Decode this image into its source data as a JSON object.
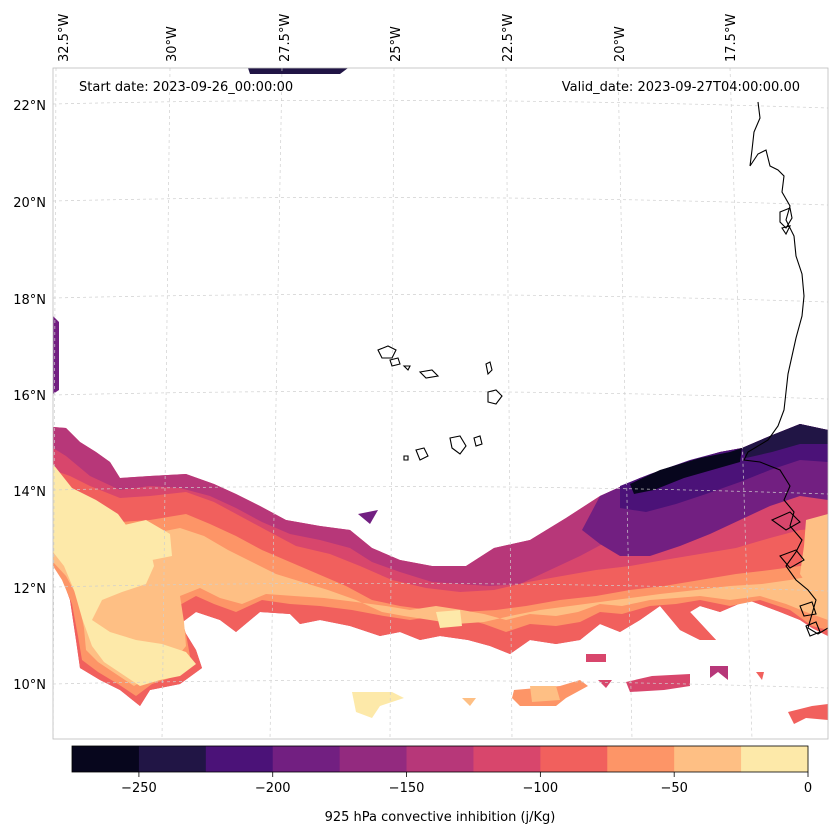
{
  "map": {
    "start_date": "Start date: 2023-09-26_00:00:00",
    "valid_date": "Valid_date: 2023-09-27T04:00:00.00",
    "lon_labels": [
      "32.5°W",
      "30°W",
      "27.5°W",
      "25°W",
      "22.5°W",
      "20°W",
      "17.5°W"
    ],
    "lat_labels": [
      "22°N",
      "20°N",
      "18°N",
      "16°N",
      "14°N",
      "12°N",
      "10°N"
    ],
    "region": "Cape Verde / West African coast",
    "field": "925 hPa convective inhibition"
  },
  "colorbar": {
    "label": "925 hPa convective inhibition (j/Kg)",
    "ticks": [
      "−250",
      "−200",
      "−150",
      "−100",
      "−50",
      "0"
    ],
    "levels": [
      -275,
      -250,
      -225,
      -200,
      -175,
      -150,
      -125,
      -100,
      -75,
      -50,
      -25,
      0
    ],
    "colors": [
      "#07061d",
      "#211545",
      "#4b1278",
      "#721f81",
      "#932a7f",
      "#b73779",
      "#d8466c",
      "#f1605d",
      "#fd9567",
      "#febf84",
      "#fde9a9"
    ]
  },
  "colors": {
    "coastline": "#000000",
    "gridline": "#cfcfcf",
    "background": "#ffffff"
  }
}
